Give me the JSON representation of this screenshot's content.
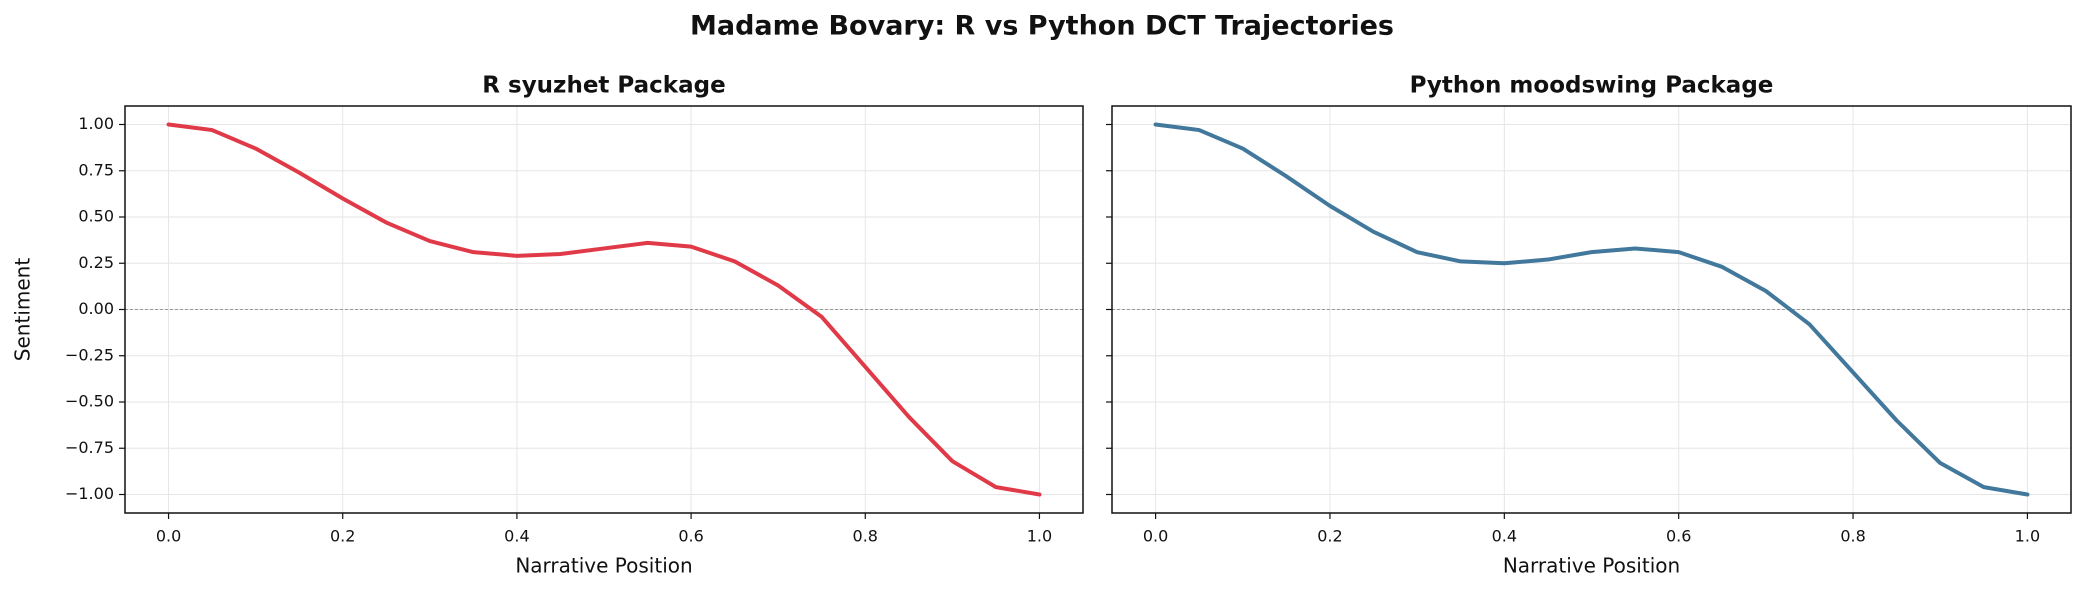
{
  "title": "Madame Bovary: R vs Python DCT Trajectories",
  "chart_data": [
    {
      "type": "line",
      "title": "R syuzhet Package",
      "xlabel": "Narrative Position",
      "ylabel": "Sentiment",
      "x": [
        0,
        0.05,
        0.1,
        0.15,
        0.2,
        0.25,
        0.3,
        0.35,
        0.4,
        0.45,
        0.5,
        0.55,
        0.6,
        0.65,
        0.7,
        0.75,
        0.8,
        0.85,
        0.9,
        0.95,
        1.0
      ],
      "series": [
        {
          "name": "R syuzhet",
          "color": "#e03a48",
          "values": [
            1.0,
            0.97,
            0.87,
            0.74,
            0.6,
            0.47,
            0.37,
            0.31,
            0.29,
            0.3,
            0.33,
            0.36,
            0.34,
            0.26,
            0.13,
            -0.04,
            -0.31,
            -0.58,
            -0.82,
            -0.96,
            -1.0
          ]
        }
      ],
      "xlim": [
        -0.05,
        1.05
      ],
      "ylim": [
        -1.1,
        1.1
      ],
      "xticks": [
        {
          "value": 0,
          "label": "0.0"
        },
        {
          "value": 0.2,
          "label": "0.2"
        },
        {
          "value": 0.4,
          "label": "0.4"
        },
        {
          "value": 0.6,
          "label": "0.6"
        },
        {
          "value": 0.8,
          "label": "0.8"
        },
        {
          "value": 1,
          "label": "1.0"
        }
      ],
      "yticks": [
        {
          "value": -1,
          "label": "−1.00"
        },
        {
          "value": -0.75,
          "label": "−0.75"
        },
        {
          "value": -0.5,
          "label": "−0.50"
        },
        {
          "value": -0.25,
          "label": "−0.25"
        },
        {
          "value": 0,
          "label": "0.00"
        },
        {
          "value": 0.25,
          "label": "0.25"
        },
        {
          "value": 0.5,
          "label": "0.50"
        },
        {
          "value": 0.75,
          "label": "0.75"
        },
        {
          "value": 1,
          "label": "1.00"
        }
      ],
      "show_ytick_labels": true,
      "grid": true,
      "zero_line": true
    },
    {
      "type": "line",
      "title": "Python moodswing Package",
      "xlabel": "Narrative Position",
      "x": [
        0,
        0.05,
        0.1,
        0.15,
        0.2,
        0.25,
        0.3,
        0.35,
        0.4,
        0.45,
        0.5,
        0.55,
        0.6,
        0.65,
        0.7,
        0.75,
        0.8,
        0.85,
        0.9,
        0.95,
        1.0
      ],
      "series": [
        {
          "name": "Python moodswing",
          "color": "#41789c",
          "values": [
            1.0,
            0.97,
            0.87,
            0.72,
            0.56,
            0.42,
            0.31,
            0.26,
            0.25,
            0.27,
            0.31,
            0.33,
            0.31,
            0.23,
            0.1,
            -0.08,
            -0.34,
            -0.6,
            -0.83,
            -0.96,
            -1.0
          ]
        }
      ],
      "xlim": [
        -0.05,
        1.05
      ],
      "ylim": [
        -1.1,
        1.1
      ],
      "xticks": [
        {
          "value": 0,
          "label": "0.0"
        },
        {
          "value": 0.2,
          "label": "0.2"
        },
        {
          "value": 0.4,
          "label": "0.4"
        },
        {
          "value": 0.6,
          "label": "0.6"
        },
        {
          "value": 0.8,
          "label": "0.8"
        },
        {
          "value": 1,
          "label": "1.0"
        }
      ],
      "yticks": [
        -1,
        -0.75,
        -0.5,
        -0.25,
        0,
        0.25,
        0.5,
        0.75,
        1
      ],
      "show_ytick_labels": false,
      "grid": true,
      "zero_line": true
    }
  ]
}
